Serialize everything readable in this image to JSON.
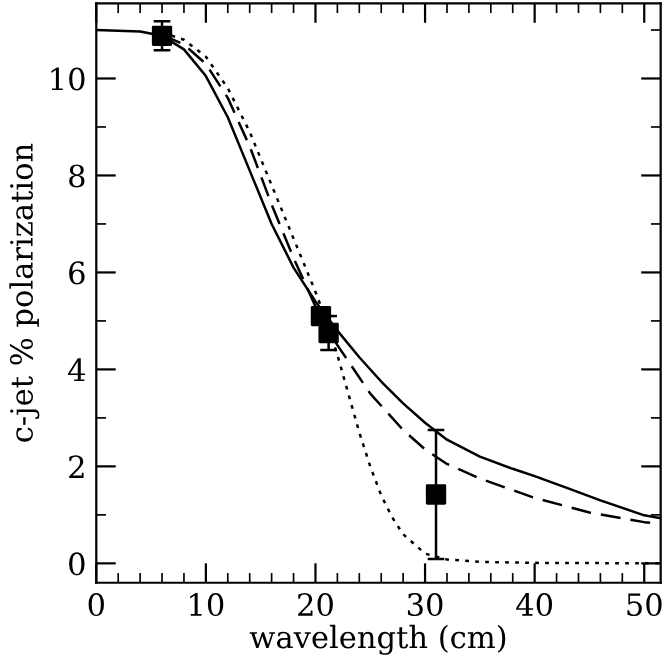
{
  "chart_data": {
    "type": "line",
    "xlabel": "wavelength (cm)",
    "ylabel": "c-jet % polarization",
    "xlim": [
      0,
      51.5
    ],
    "ylim": [
      -0.4,
      11.55
    ],
    "xticks": [
      0,
      10,
      20,
      30,
      40,
      50
    ],
    "yticks": [
      0,
      2,
      4,
      6,
      8,
      10
    ],
    "grid": false,
    "legend": false,
    "series": [
      {
        "line_style": "solid",
        "color": "#000000",
        "x": [
          0,
          4,
          6,
          8,
          10,
          12,
          14,
          16,
          18,
          20,
          22,
          24,
          26,
          28,
          30,
          32,
          35,
          38,
          40,
          43,
          46,
          50,
          51.5
        ],
        "values": [
          11.0,
          10.97,
          10.88,
          10.6,
          10.05,
          9.2,
          8.1,
          7.0,
          6.1,
          5.4,
          4.8,
          4.25,
          3.75,
          3.3,
          2.9,
          2.55,
          2.2,
          1.95,
          1.8,
          1.55,
          1.3,
          0.99,
          0.93
        ]
      },
      {
        "line_style": "dashed",
        "color": "#000000",
        "x": [
          6,
          8,
          10,
          12,
          14,
          16,
          18,
          20,
          22,
          25,
          28,
          30,
          32,
          35,
          40,
          45,
          50,
          51.5
        ],
        "values": [
          10.9,
          10.7,
          10.3,
          9.6,
          8.6,
          7.4,
          6.3,
          5.3,
          4.5,
          3.5,
          2.75,
          2.35,
          2.05,
          1.75,
          1.35,
          1.05,
          0.85,
          0.82
        ]
      },
      {
        "line_style": "dotted",
        "color": "#000000",
        "x": [
          6,
          8,
          10,
          12,
          14,
          16,
          18,
          20,
          21,
          22,
          23,
          24,
          25,
          26,
          27,
          28,
          30,
          32,
          35,
          40,
          51.5
        ],
        "values": [
          10.95,
          10.8,
          10.45,
          9.8,
          8.9,
          7.8,
          6.7,
          5.6,
          5.0,
          4.3,
          3.5,
          2.7,
          2.0,
          1.4,
          0.95,
          0.6,
          0.2,
          0.08,
          0.03,
          0.01,
          0.0
        ]
      },
      {
        "type": "scatter",
        "marker": "square",
        "color": "#000000",
        "x": [
          6,
          20.5,
          21.2,
          31.0
        ],
        "values": [
          10.88,
          5.1,
          4.75,
          1.42
        ],
        "errors": [
          0.3,
          null,
          0.35,
          1.33
        ]
      }
    ]
  }
}
